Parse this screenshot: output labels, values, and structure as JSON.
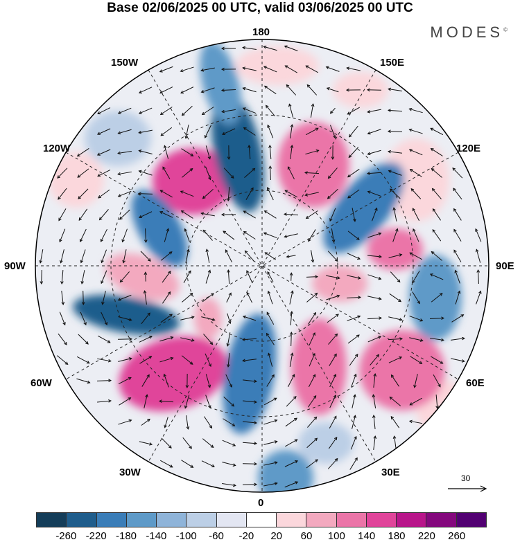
{
  "title": "Base 02/06/2025 00 UTC, valid 03/06/2025 00 UTC",
  "brand": "MODES",
  "brand_mark": "©",
  "longitude_labels": {
    "lon_180": "180",
    "lon_150w": "150W",
    "lon_150e": "150E",
    "lon_120w": "120W",
    "lon_120e": "120E",
    "lon_90w": "90W",
    "lon_90e": "90E",
    "lon_60w": "60W",
    "lon_60e": "60E",
    "lon_30w": "30W",
    "lon_30e": "30E",
    "lon_0": "0"
  },
  "reference_vector": "30",
  "colorbar": {
    "ticks": [
      "-260",
      "-220",
      "-180",
      "-140",
      "-100",
      "-60",
      "-20",
      "20",
      "60",
      "100",
      "140",
      "180",
      "220",
      "260"
    ],
    "colors": [
      "#143d59",
      "#1f5d8c",
      "#3a7db8",
      "#5e9ac8",
      "#8fb4d9",
      "#bccfe6",
      "#e3e6f2",
      "#ffffff",
      "#fbd7dc",
      "#f3a9bf",
      "#eb75a8",
      "#e0449a",
      "#b8158a",
      "#84087d",
      "#520072"
    ]
  },
  "anomaly_centers": [
    {
      "name": "pos-alaska",
      "color": "#e0449a",
      "value": 180
    },
    {
      "name": "neg-bering",
      "color": "#1f5d8c",
      "value": -220
    },
    {
      "name": "neg-pacific-n",
      "color": "#5e9ac8",
      "value": -140
    },
    {
      "name": "pos-east-siberia",
      "color": "#eb75a8",
      "value": 140
    },
    {
      "name": "neg-central-siberia",
      "color": "#3a7db8",
      "value": -180
    },
    {
      "name": "pos-kazakhstan",
      "color": "#eb75a8",
      "value": 140
    },
    {
      "name": "neg-mongolia",
      "color": "#5e9ac8",
      "value": -140
    },
    {
      "name": "pos-russia",
      "color": "#eb75a8",
      "value": 140
    },
    {
      "name": "neg-canada",
      "color": "#3a7db8",
      "value": -180
    },
    {
      "name": "pos-us",
      "color": "#f3a9bf",
      "value": 100
    },
    {
      "name": "neg-us",
      "color": "#1f5d8c",
      "value": -220
    },
    {
      "name": "pos-atlantic",
      "color": "#e0449a",
      "value": 180
    },
    {
      "name": "neg-atlantic",
      "color": "#3a7db8",
      "value": -180
    },
    {
      "name": "pos-scandinavia",
      "color": "#eb75a8",
      "value": 140
    },
    {
      "name": "neg-europe",
      "color": "#5e9ac8",
      "value": -140
    }
  ]
}
